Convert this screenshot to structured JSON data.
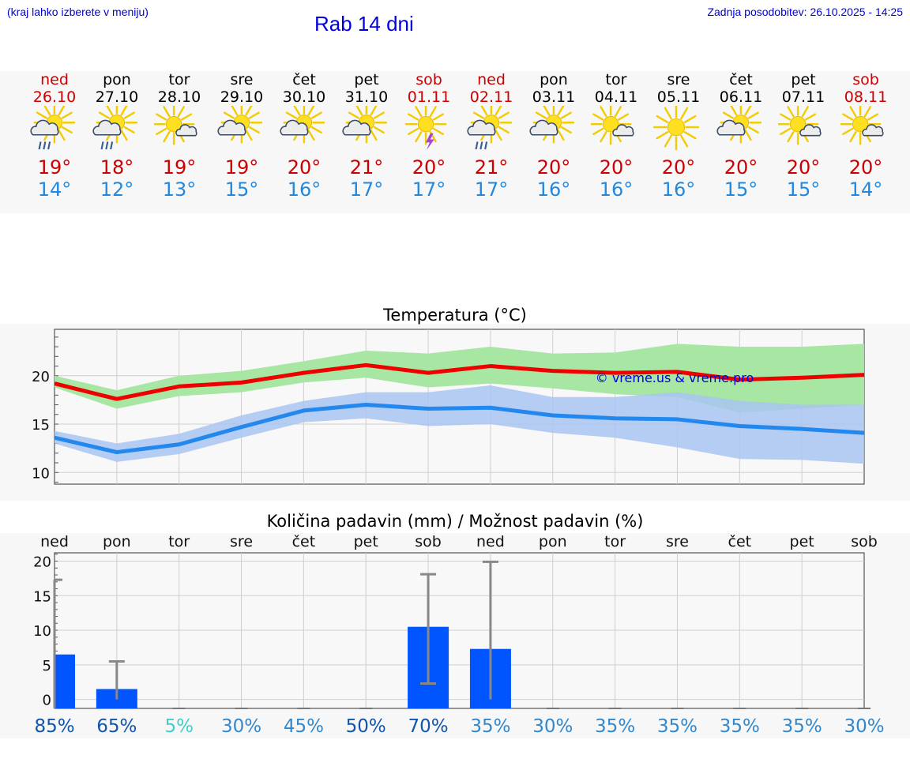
{
  "header": {
    "hint": "(kraj lahko izberete v meniju)",
    "title": "Rab 14 dni",
    "updated": "Zadnja posodobitev: 26.10.2025 - 14:25"
  },
  "watermark": "© vreme.us & vreme.pro",
  "days": [
    {
      "name": "ned",
      "date": "26.10",
      "weekend": true,
      "icon": "sun-cloud-rain",
      "max": "19°",
      "min": "14°"
    },
    {
      "name": "pon",
      "date": "27.10",
      "weekend": false,
      "icon": "sun-cloud-rain",
      "max": "18°",
      "min": "12°"
    },
    {
      "name": "tor",
      "date": "28.10",
      "weekend": false,
      "icon": "sun-small-cloud",
      "max": "19°",
      "min": "13°"
    },
    {
      "name": "sre",
      "date": "29.10",
      "weekend": false,
      "icon": "sun-cloud",
      "max": "19°",
      "min": "15°"
    },
    {
      "name": "čet",
      "date": "30.10",
      "weekend": false,
      "icon": "sun-cloud",
      "max": "20°",
      "min": "16°"
    },
    {
      "name": "pet",
      "date": "31.10",
      "weekend": false,
      "icon": "sun-cloud",
      "max": "21°",
      "min": "17°"
    },
    {
      "name": "sob",
      "date": "01.11",
      "weekend": true,
      "icon": "sun-thunder",
      "max": "20°",
      "min": "17°"
    },
    {
      "name": "ned",
      "date": "02.11",
      "weekend": true,
      "icon": "sun-cloud-rain",
      "max": "21°",
      "min": "17°"
    },
    {
      "name": "pon",
      "date": "03.11",
      "weekend": false,
      "icon": "sun-cloud",
      "max": "20°",
      "min": "16°"
    },
    {
      "name": "tor",
      "date": "04.11",
      "weekend": false,
      "icon": "sun-small-cloud",
      "max": "20°",
      "min": "16°"
    },
    {
      "name": "sre",
      "date": "05.11",
      "weekend": false,
      "icon": "sun",
      "max": "20°",
      "min": "16°"
    },
    {
      "name": "čet",
      "date": "06.11",
      "weekend": false,
      "icon": "sun-cloud",
      "max": "20°",
      "min": "15°"
    },
    {
      "name": "pet",
      "date": "07.11",
      "weekend": false,
      "icon": "sun-small-cloud",
      "max": "20°",
      "min": "15°"
    },
    {
      "name": "sob",
      "date": "08.11",
      "weekend": true,
      "icon": "sun-small-cloud",
      "max": "20°",
      "min": "14°"
    }
  ],
  "colors": {
    "weekend": "#cc0000",
    "weekday": "#000000",
    "max_line": "#ee0000",
    "min_line": "#2288ee",
    "max_band": "#a8e6a3",
    "min_band": "#a9c4f2",
    "bar": "#0055ff",
    "errbar": "#888888",
    "watermark": "#0000dd"
  },
  "chart_data": [
    {
      "type": "line",
      "title": "Temperatura (°C)",
      "ylim": [
        8.8,
        24.8
      ],
      "yticks": [
        10,
        15,
        20
      ],
      "x": [
        "ned",
        "pon",
        "tor",
        "sre",
        "čet",
        "pet",
        "sob",
        "ned",
        "pon",
        "tor",
        "sre",
        "čet",
        "pet",
        "sob"
      ],
      "series": [
        {
          "role": "max",
          "values": [
            19.2,
            17.6,
            18.9,
            19.3,
            20.3,
            21.1,
            20.3,
            21.0,
            20.5,
            20.3,
            20.4,
            19.6,
            19.8,
            20.1
          ],
          "band_low": [
            18.8,
            16.6,
            17.9,
            18.3,
            19.3,
            19.8,
            18.8,
            19.2,
            18.7,
            18.1,
            17.8,
            16.2,
            16.6,
            17.0
          ],
          "band_high": [
            20.0,
            18.5,
            20.0,
            20.5,
            21.5,
            22.6,
            22.3,
            23.0,
            22.3,
            22.4,
            23.3,
            23.0,
            23.0,
            23.3
          ]
        },
        {
          "role": "min",
          "values": [
            13.6,
            12.1,
            12.9,
            14.7,
            16.4,
            17.0,
            16.6,
            16.7,
            15.9,
            15.6,
            15.5,
            14.8,
            14.5,
            14.1
          ],
          "band_low": [
            13.0,
            11.1,
            11.9,
            13.6,
            15.2,
            15.6,
            14.8,
            15.0,
            14.1,
            13.6,
            12.6,
            11.4,
            11.3,
            10.9
          ],
          "band_high": [
            14.3,
            13.0,
            14.0,
            15.9,
            17.4,
            18.3,
            18.3,
            19.0,
            17.8,
            17.8,
            18.3,
            17.4,
            17.0,
            17.0
          ]
        }
      ],
      "grid": true
    },
    {
      "type": "bar",
      "title": "Količina padavin (mm) / Možnost padavin (%)",
      "categories": [
        "ned",
        "pon",
        "tor",
        "sre",
        "čet",
        "pet",
        "sob",
        "ned",
        "pon",
        "tor",
        "sre",
        "čet",
        "pet",
        "sob"
      ],
      "values": [
        6.5,
        1.5,
        0,
        0,
        0,
        0,
        10.5,
        7.3,
        0,
        0,
        0,
        0,
        0,
        0
      ],
      "err_low": [
        null,
        0,
        0,
        0,
        0,
        0,
        2.3,
        0,
        0,
        0,
        0,
        0,
        0,
        0
      ],
      "err_high": [
        17.3,
        5.5,
        0,
        0,
        0,
        0,
        18.1,
        19.9,
        0,
        0,
        0,
        0,
        0,
        0
      ],
      "ylim": [
        -1.3,
        21.2
      ],
      "yticks": [
        0,
        5,
        10,
        15,
        20
      ],
      "probability": [
        "85%",
        "65%",
        "5%",
        "30%",
        "45%",
        "50%",
        "70%",
        "35%",
        "30%",
        "35%",
        "35%",
        "35%",
        "35%",
        "30%"
      ],
      "probability_colors": [
        "#1155aa",
        "#1155aa",
        "#44cccc",
        "#3388cc",
        "#3388cc",
        "#1155aa",
        "#1155aa",
        "#3388cc",
        "#3388cc",
        "#3388cc",
        "#3388cc",
        "#3388cc",
        "#3388cc",
        "#3388cc"
      ],
      "grid": true
    }
  ]
}
